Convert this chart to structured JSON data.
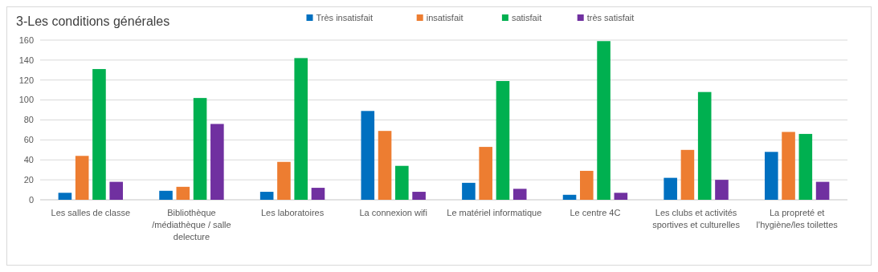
{
  "chart_data": {
    "type": "bar",
    "title": "3-Les conditions générales",
    "categories": [
      "Les salles de classe",
      "Bibliothèque /médiathèque / salle delecture",
      "Les laboratoires",
      "La connexion wifi",
      "Le matériel informatique",
      "Le centre 4C",
      "Les clubs et activités sportives et culturelles",
      "La propreté et l'hygiène/les toilettes"
    ],
    "series": [
      {
        "name": "Très insatisfait",
        "color": "#0070c0",
        "values": [
          7,
          9,
          8,
          89,
          17,
          5,
          22,
          48
        ]
      },
      {
        "name": "insatisfait",
        "color": "#ed7d31",
        "values": [
          44,
          13,
          38,
          69,
          53,
          29,
          50,
          68
        ]
      },
      {
        "name": "satisfait",
        "color": "#00b050",
        "values": [
          131,
          102,
          142,
          34,
          119,
          159,
          108,
          66
        ]
      },
      {
        "name": "très satisfait",
        "color": "#7030a0",
        "values": [
          18,
          76,
          12,
          8,
          11,
          7,
          20,
          18
        ]
      }
    ],
    "ylim": [
      0,
      160
    ],
    "yticks": [
      0,
      20,
      40,
      60,
      80,
      100,
      120,
      140,
      160
    ],
    "grid": "y",
    "legend": "top"
  }
}
